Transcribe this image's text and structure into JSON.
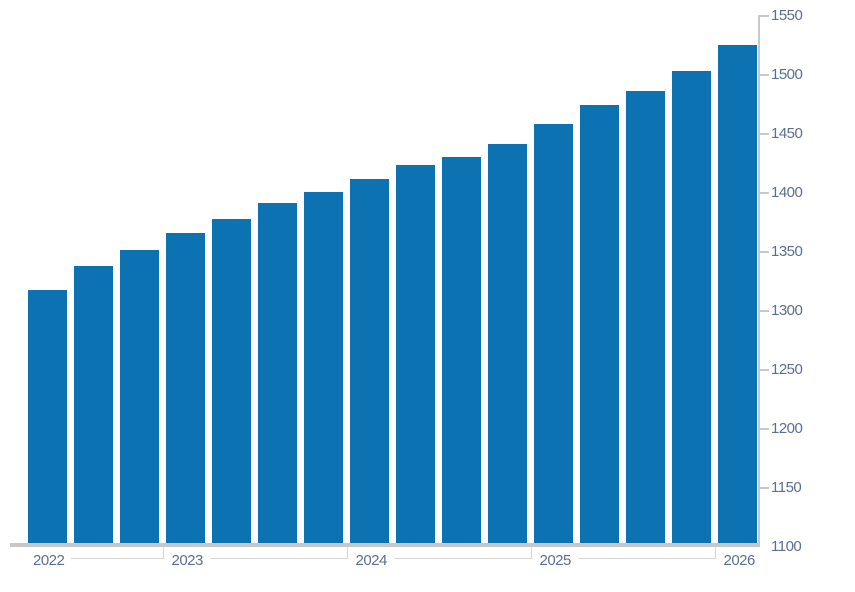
{
  "chart_data": {
    "type": "bar",
    "title": "",
    "xlabel": "",
    "ylabel": "",
    "values": [
      1317,
      1337,
      1351,
      1365,
      1377,
      1391,
      1400,
      1411,
      1423,
      1430,
      1441,
      1458,
      1474,
      1486,
      1503,
      1525
    ],
    "year_groups": [
      {
        "label": "2022",
        "bar_count": 3
      },
      {
        "label": "2023",
        "bar_count": 4
      },
      {
        "label": "2024",
        "bar_count": 4
      },
      {
        "label": "2025",
        "bar_count": 4
      },
      {
        "label": "2026",
        "bar_count": 1
      }
    ],
    "x_axis": {
      "labels": [
        "2022",
        "2023",
        "2024",
        "2025",
        "2026"
      ]
    },
    "y_axis": {
      "min": 1100,
      "max": 1550,
      "step": 50,
      "position": "right",
      "tick_labels": [
        "1550",
        "1500",
        "1450",
        "1400",
        "1350",
        "1300",
        "1250",
        "1200",
        "1150",
        "1100"
      ]
    },
    "grid": false,
    "legend": false
  },
  "colors": {
    "bar": "#0d72b2",
    "axis_text": "#5c6e91",
    "axis_line": "#c8c8c8",
    "divider_line": "#d6d6d6",
    "background": "#ffffff"
  }
}
